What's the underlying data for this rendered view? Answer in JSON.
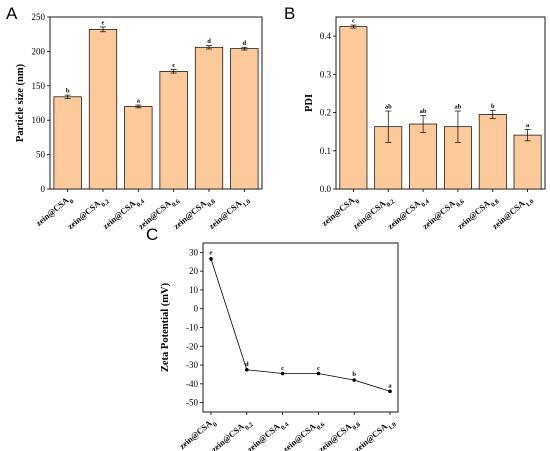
{
  "panels": {
    "A": {
      "label": "A"
    },
    "B": {
      "label": "B"
    },
    "C": {
      "label": "C"
    }
  },
  "chart_data": [
    {
      "id": "A",
      "type": "bar",
      "categories": [
        {
          "base": "zein@CSA",
          "sub": "0"
        },
        {
          "base": "zein@CSA",
          "sub": "0.2"
        },
        {
          "base": "zein@CSA",
          "sub": "0.4"
        },
        {
          "base": "zein@CSA",
          "sub": "0.6"
        },
        {
          "base": "zein@CSA",
          "sub": "0.8"
        },
        {
          "base": "zein@CSA",
          "sub": "1.0"
        }
      ],
      "values": [
        134,
        232,
        120,
        171,
        206,
        204
      ],
      "errors": [
        2.5,
        3.5,
        2.0,
        2.5,
        2.5,
        2.0
      ],
      "significance": [
        "b",
        "e",
        "a",
        "c",
        "d",
        "d"
      ],
      "xlabel": "",
      "ylabel": "Particle size (nm)",
      "ylim": [
        0,
        250
      ],
      "yticks": [
        0,
        50,
        100,
        150,
        200,
        250
      ],
      "bar_color": "#fcc99b",
      "edge_color": "#000000",
      "grid": false
    },
    {
      "id": "B",
      "type": "bar",
      "categories": [
        {
          "base": "zein@CSA",
          "sub": "0"
        },
        {
          "base": "zein@CSA",
          "sub": "0.2"
        },
        {
          "base": "zein@CSA",
          "sub": "0.4"
        },
        {
          "base": "zein@CSA",
          "sub": "0.6"
        },
        {
          "base": "zein@CSA",
          "sub": "0.8"
        },
        {
          "base": "zein@CSA",
          "sub": "1.0"
        }
      ],
      "values": [
        0.425,
        0.163,
        0.17,
        0.163,
        0.195,
        0.141
      ],
      "errors": [
        0.004,
        0.041,
        0.022,
        0.041,
        0.011,
        0.015
      ],
      "significance": [
        "c",
        "ab",
        "ab",
        "ab",
        "b",
        "a"
      ],
      "xlabel": "",
      "ylabel": "PDI",
      "ylim": [
        0,
        0.45
      ],
      "yticks": [
        0.0,
        0.1,
        0.2,
        0.3,
        0.4
      ],
      "bar_color": "#fcc99b",
      "edge_color": "#000000",
      "grid": false
    },
    {
      "id": "C",
      "type": "line",
      "categories": [
        {
          "base": "zein@CSA",
          "sub": "0"
        },
        {
          "base": "zein@CSA",
          "sub": "0.2"
        },
        {
          "base": "zein@CSA",
          "sub": "0.4"
        },
        {
          "base": "zein@CSA",
          "sub": "0.6"
        },
        {
          "base": "zein@CSA",
          "sub": "0.8"
        },
        {
          "base": "zein@CSA",
          "sub": "1.0"
        }
      ],
      "values": [
        26.5,
        -32.5,
        -34.5,
        -34.5,
        -38.0,
        -44.0
      ],
      "errors": [
        1.0,
        0.6,
        0.6,
        0.6,
        0.8,
        0.6
      ],
      "significance": [
        "e",
        "d",
        "c",
        "c",
        "b",
        "a"
      ],
      "xlabel": "",
      "ylabel": "Zeta Potential (mV)",
      "ylim": [
        -55,
        35
      ],
      "yticks": [
        -50,
        -40,
        -30,
        -20,
        -10,
        0,
        10,
        20,
        30
      ],
      "line_color": "#000000",
      "grid": false
    }
  ]
}
